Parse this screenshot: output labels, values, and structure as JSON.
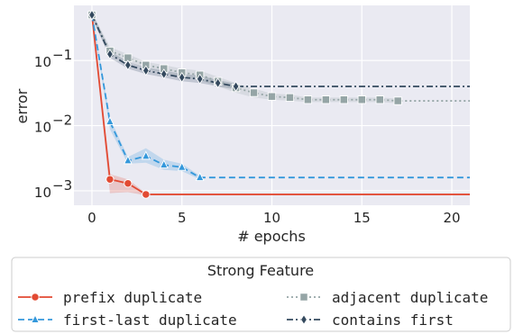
{
  "chart_data": {
    "type": "line",
    "xlabel": "# epochs",
    "ylabel": "error",
    "xlim": [
      -1,
      21
    ],
    "ylim": [
      0.0006,
      0.7
    ],
    "yscale": "log",
    "grid": true,
    "xticks": [
      0,
      5,
      10,
      15,
      20
    ],
    "xtick_labels": [
      "0",
      "5",
      "10",
      "15",
      "20"
    ],
    "yticks": [
      0.001,
      0.01,
      0.1
    ],
    "ytick_labels": [
      "10",
      "10",
      "10"
    ],
    "ytick_exponents": [
      "−3",
      "−2",
      "−1"
    ],
    "legend": {
      "title": "Strong Feature",
      "placement": "bottom-outside"
    },
    "series": [
      {
        "name": "prefix duplicate",
        "color": "#e24a33",
        "marker": "circle",
        "dash": "solid",
        "x": [
          0,
          1,
          2,
          3
        ],
        "y": [
          0.5,
          0.0015,
          0.0013,
          0.00088
        ],
        "band_low": [
          0.45,
          0.00092,
          0.00095,
          0.00085
        ],
        "band_high": [
          0.55,
          0.0018,
          0.0015,
          0.00092
        ],
        "extend_to_x": 21
      },
      {
        "name": "first-last duplicate",
        "color": "#3498db",
        "marker": "triangle",
        "dash": "dashed",
        "x": [
          0,
          1,
          2,
          3,
          4,
          5,
          6
        ],
        "y": [
          0.5,
          0.0115,
          0.0029,
          0.0034,
          0.0025,
          0.0023,
          0.0016
        ],
        "band_low": [
          0.45,
          0.0088,
          0.0026,
          0.0027,
          0.0021,
          0.002,
          0.0015
        ],
        "band_high": [
          0.55,
          0.013,
          0.0033,
          0.0045,
          0.003,
          0.0026,
          0.0017
        ],
        "extend_to_x": 21
      },
      {
        "name": "adjacent duplicate",
        "color": "#95a5a6",
        "marker": "square",
        "dash": "dotted",
        "x": [
          0,
          1,
          2,
          3,
          4,
          5,
          6,
          7,
          8,
          9,
          10,
          11,
          12,
          13,
          14,
          15,
          16,
          17
        ],
        "y": [
          0.5,
          0.14,
          0.11,
          0.085,
          0.075,
          0.065,
          0.06,
          0.048,
          0.038,
          0.032,
          0.028,
          0.027,
          0.025,
          0.025,
          0.025,
          0.025,
          0.025,
          0.024
        ],
        "band_low": [
          0.45,
          0.12,
          0.095,
          0.075,
          0.065,
          0.055,
          0.05,
          0.04,
          0.032,
          0.027,
          0.025,
          0.024,
          0.023,
          0.023,
          0.023,
          0.023,
          0.023,
          0.022
        ],
        "band_high": [
          0.55,
          0.16,
          0.125,
          0.095,
          0.085,
          0.075,
          0.07,
          0.056,
          0.045,
          0.037,
          0.031,
          0.03,
          0.027,
          0.027,
          0.027,
          0.027,
          0.027,
          0.026
        ],
        "extend_to_x": 21
      },
      {
        "name": "contains first",
        "color": "#34495e",
        "marker": "diamond",
        "dash": "dashdot",
        "x": [
          0,
          1,
          2,
          3,
          4,
          5,
          6,
          7,
          8
        ],
        "y": [
          0.5,
          0.125,
          0.085,
          0.07,
          0.062,
          0.055,
          0.052,
          0.045,
          0.04
        ],
        "band_low": [
          0.45,
          0.11,
          0.075,
          0.062,
          0.055,
          0.048,
          0.045,
          0.04,
          0.036
        ],
        "band_high": [
          0.55,
          0.14,
          0.095,
          0.078,
          0.07,
          0.062,
          0.059,
          0.05,
          0.044
        ],
        "extend_to_x": 21
      }
    ]
  }
}
